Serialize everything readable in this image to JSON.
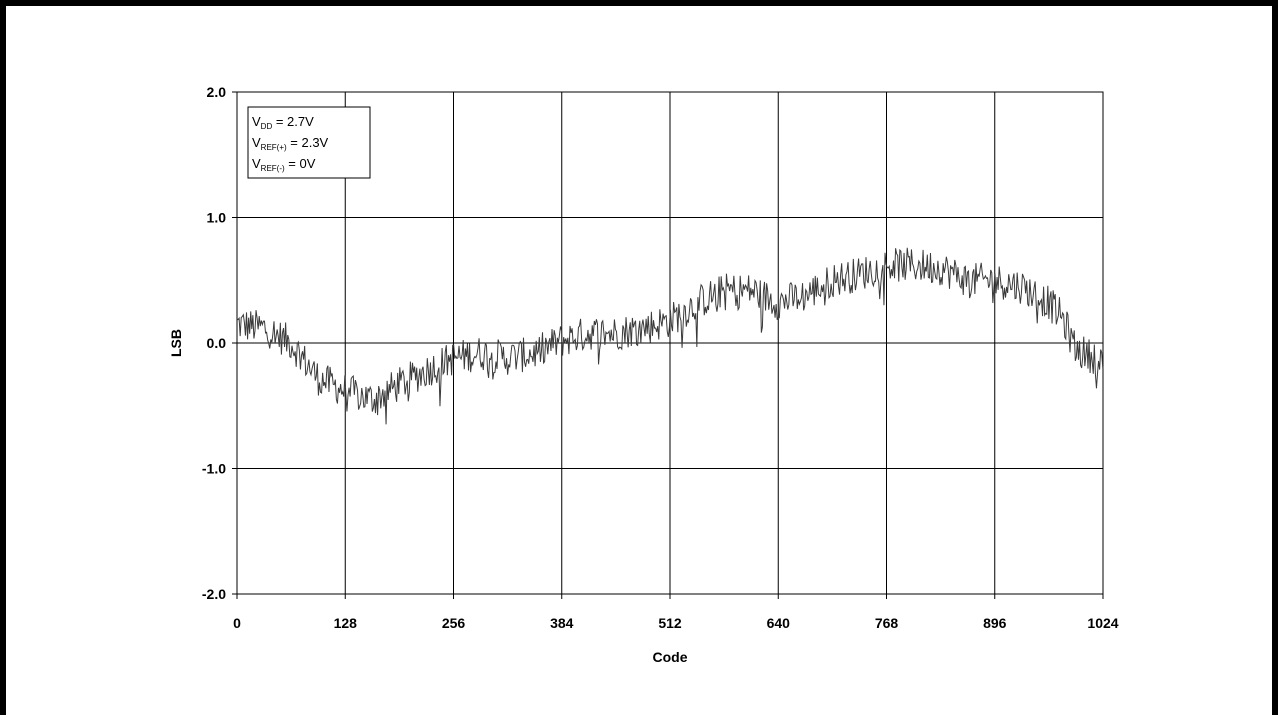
{
  "chart_data": {
    "type": "line",
    "title": "",
    "xlabel": "Code",
    "ylabel": "LSB",
    "xlim": [
      0,
      1024
    ],
    "ylim": [
      -2.0,
      2.0
    ],
    "grid": true,
    "x_ticks": [
      "0",
      "128",
      "256",
      "384",
      "512",
      "640",
      "768",
      "896",
      "1024"
    ],
    "y_ticks": [
      "2.0",
      "1.0",
      "0.0",
      "-1.0",
      "-2.0"
    ],
    "conditions_box": {
      "placement": "top-left",
      "lines": [
        {
          "main": "V",
          "sub": "DD",
          "rest": " = 2.7V"
        },
        {
          "main": "V",
          "sub": "REF(+)",
          "rest": " = 2.3V"
        },
        {
          "main": "V",
          "sub": "REF(-)",
          "rest": " = 0V"
        }
      ]
    },
    "series": [
      {
        "color": "#3a3a3a",
        "x": [
          0,
          32,
          64,
          96,
          128,
          160,
          192,
          224,
          256,
          288,
          320,
          352,
          384,
          416,
          448,
          480,
          512,
          544,
          576,
          608,
          640,
          672,
          704,
          736,
          768,
          800,
          832,
          864,
          896,
          928,
          960,
          976,
          992,
          1008,
          1024
        ],
        "y": [
          0.15,
          0.12,
          0.0,
          -0.28,
          -0.38,
          -0.45,
          -0.33,
          -0.22,
          -0.12,
          -0.08,
          -0.12,
          -0.08,
          0.02,
          0.08,
          0.08,
          0.12,
          0.18,
          0.32,
          0.42,
          0.42,
          0.32,
          0.38,
          0.5,
          0.55,
          0.62,
          0.62,
          0.6,
          0.5,
          0.5,
          0.45,
          0.32,
          0.2,
          -0.05,
          -0.1,
          -0.12
        ],
        "noise_amplitude_lsb": 0.2
      }
    ]
  }
}
